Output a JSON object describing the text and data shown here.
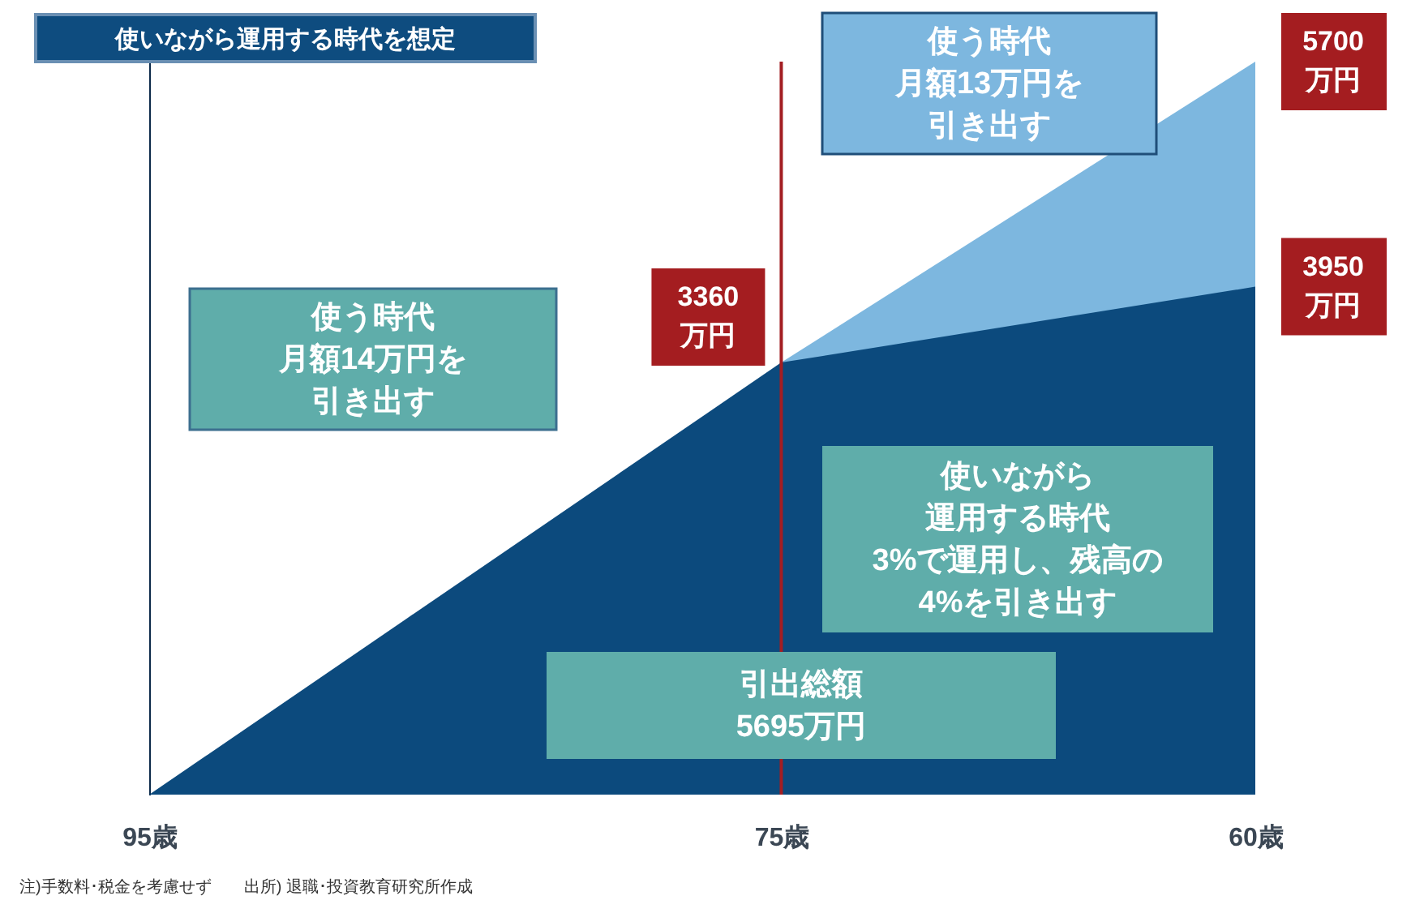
{
  "chart_data": {
    "type": "area",
    "title": "使いながら運用する時代を想定",
    "series": [
      {
        "color": "#7db7df",
        "x": [
          75,
          60
        ],
        "values": [
          3360,
          5700
        ],
        "value_labels": [
          null,
          "5700\n万円"
        ]
      },
      {
        "color": "#0c4a7d",
        "x": [
          95,
          75,
          60
        ],
        "values": [
          0,
          3360,
          3950
        ],
        "value_labels": [
          null,
          "3360\n万円",
          "3950\n万円"
        ]
      }
    ],
    "xlim": [
      95,
      60
    ],
    "xticks": [
      {
        "value": 95,
        "label": "95歳"
      },
      {
        "value": 75,
        "label": "75歳"
      },
      {
        "value": 60,
        "label": "60歳"
      }
    ],
    "ylim": [
      0,
      5700
    ],
    "tick_labels": "x",
    "ref_lines": [
      {
        "axis": "x",
        "value": 75,
        "color": "#a31d22"
      }
    ],
    "annotations": [
      "使う時代月額14万円を引き出す",
      "使う時代月額13万円を引き出す",
      "使いながら運用する時代3%で運用し、残高の4%を引き出す",
      "引出総額5695万円",
      "注)手数料･税金を考慮せず　　出所) 退職･投資教育研究所作成"
    ]
  }
}
